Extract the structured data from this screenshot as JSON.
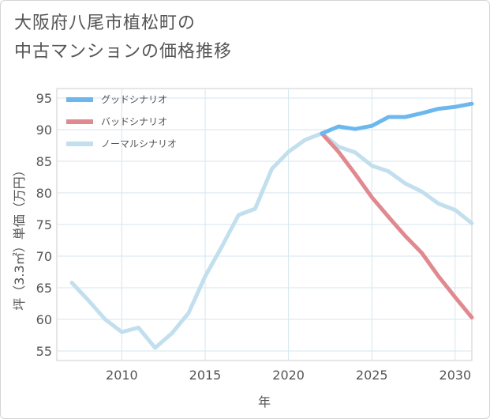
{
  "page": {
    "title_line1": "大阪府八尾市植松町の",
    "title_line2": "中古マンションの価格推移"
  },
  "chart_data": {
    "type": "line",
    "xlabel": "年",
    "ylabel": "坪（3.3㎡）単価（万円）",
    "xlim": [
      2006.1,
      2031
    ],
    "ylim": [
      53.5,
      96.5
    ],
    "xticks": [
      2010,
      2015,
      2020,
      2025,
      2030
    ],
    "yticks": [
      55,
      60,
      65,
      70,
      75,
      80,
      85,
      90,
      95
    ],
    "grid": true,
    "legend_position": "top-left",
    "series": [
      {
        "name": "グッドシナリオ",
        "color": "#6cb8ee",
        "x": [
          2022,
          2023,
          2024,
          2025,
          2026,
          2027,
          2028,
          2029,
          2030,
          2031
        ],
        "y": [
          89.4,
          90.5,
          90.1,
          90.6,
          92.0,
          92.0,
          92.6,
          93.3,
          93.6,
          94.1
        ]
      },
      {
        "name": "バッドシナリオ",
        "color": "#e0898f",
        "x": [
          2022,
          2023,
          2024,
          2025,
          2026,
          2027,
          2028,
          2029,
          2030,
          2031
        ],
        "y": [
          89.4,
          86.5,
          83.0,
          79.3,
          76.2,
          73.2,
          70.5,
          66.8,
          63.5,
          60.3
        ]
      },
      {
        "name": "ノーマルシナリオ",
        "color": "#c2dfee",
        "x": [
          2007,
          2008,
          2009,
          2010,
          2011,
          2012,
          2013,
          2014,
          2015,
          2016,
          2017,
          2018,
          2019,
          2020,
          2021,
          2022,
          2023,
          2024,
          2025,
          2026,
          2027,
          2028,
          2029,
          2030,
          2031
        ],
        "y": [
          65.8,
          63.0,
          60.0,
          58.0,
          58.7,
          55.5,
          57.8,
          61.0,
          66.8,
          71.5,
          76.5,
          77.5,
          83.8,
          86.5,
          88.4,
          89.4,
          87.3,
          86.4,
          84.3,
          83.4,
          81.5,
          80.2,
          78.3,
          77.3,
          75.2
        ]
      }
    ]
  }
}
